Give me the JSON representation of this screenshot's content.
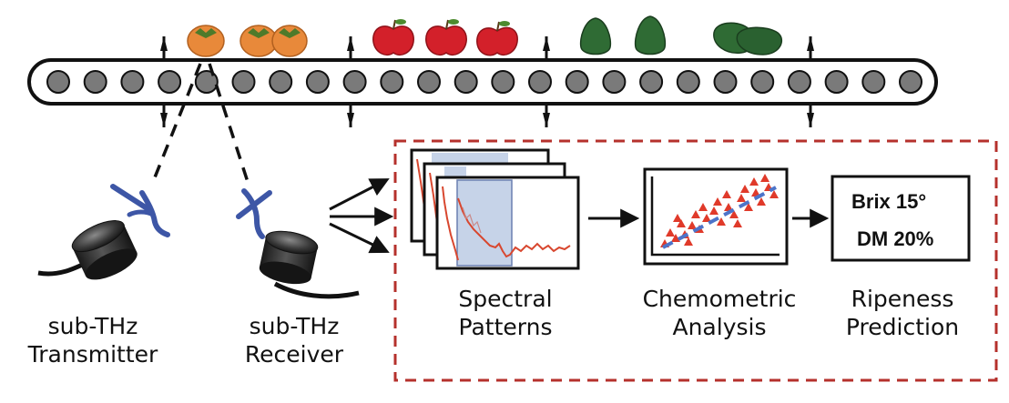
{
  "labels": {
    "transmitter": [
      "sub-THz",
      "Transmitter"
    ],
    "receiver": [
      "sub-THz",
      "Receiver"
    ],
    "spectral": [
      "Spectral",
      "Patterns"
    ],
    "chemometric": [
      "Chemometric",
      "Analysis"
    ],
    "ripeness": [
      "Ripeness",
      "Prediction"
    ]
  },
  "prediction": {
    "brix": "Brix  15°",
    "dm": "DM 20%"
  },
  "produce": [
    "persimmon",
    "persimmon",
    "apple",
    "apple",
    "apple",
    "avocado",
    "avocado",
    "avocado",
    "avocado"
  ],
  "colors": {
    "dashed_box": "#b5312c",
    "roller": "#7a7a7a",
    "antenna": "#3d56a6",
    "spectrum": "#d8472f",
    "highlight": "#c6d3e8",
    "triangle": "#e03a2a",
    "fit_line": "#4d74c9",
    "persimmon": "#e8893a",
    "apple": "#d3202a",
    "avocado": "#2f6b34"
  }
}
